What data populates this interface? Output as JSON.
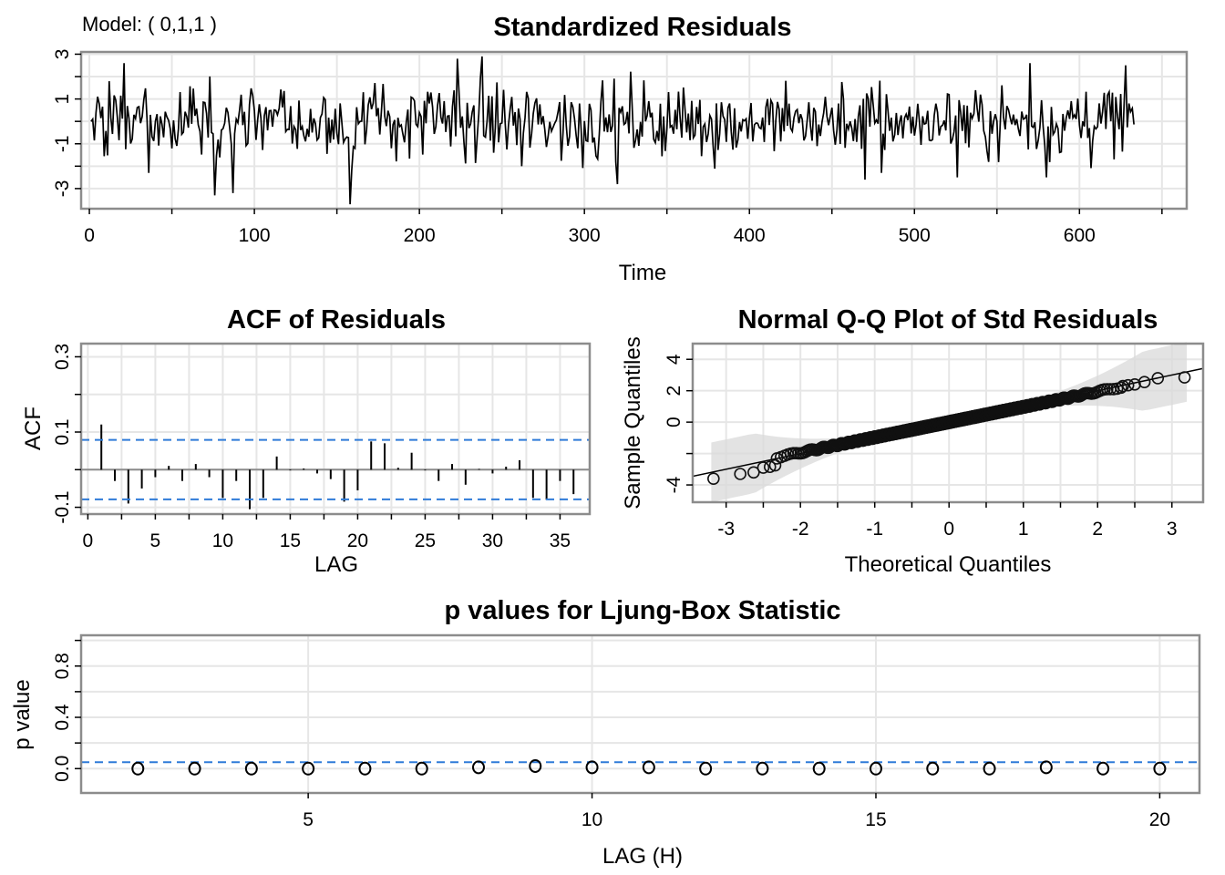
{
  "model_label": "Model: ( 0,1,1 )",
  "chart_data": [
    {
      "type": "line",
      "title": "Standardized Residuals",
      "xlabel": "Time",
      "ylabel": "",
      "xlim": [
        -5,
        665
      ],
      "ylim": [
        -3.9,
        3.1
      ],
      "xticks": [
        0,
        100,
        200,
        300,
        400,
        500,
        600
      ],
      "yticks": [
        3,
        1,
        -1,
        -3
      ],
      "n": 633,
      "seed": 17,
      "extremes": [
        {
          "t": 21,
          "y": 2.6
        },
        {
          "t": 76,
          "y": -3.3
        },
        {
          "t": 87,
          "y": -3.2
        },
        {
          "t": 158,
          "y": -3.7
        },
        {
          "t": 223,
          "y": 2.8
        },
        {
          "t": 238,
          "y": 2.9
        },
        {
          "t": 320,
          "y": -2.8
        },
        {
          "t": 570,
          "y": 2.6
        },
        {
          "t": 526,
          "y": -2.5
        },
        {
          "t": 628,
          "y": 2.5
        },
        {
          "t": 36,
          "y": -2.3
        },
        {
          "t": 262,
          "y": -2.0
        },
        {
          "t": 470,
          "y": -2.6
        },
        {
          "t": 480,
          "y": -2.3
        },
        {
          "t": 580,
          "y": -2.5
        }
      ],
      "grid": true,
      "color": "#000000"
    },
    {
      "type": "bar",
      "title": "ACF of Residuals",
      "xlabel": "LAG",
      "ylabel": "ACF",
      "xlim": [
        -0.5,
        37.2
      ],
      "ylim": [
        -0.118,
        0.335
      ],
      "xticks": [
        0,
        5,
        10,
        15,
        20,
        25,
        30,
        35
      ],
      "yticks": [
        0.3,
        0.1,
        -0.1
      ],
      "lags": [
        1,
        2,
        3,
        4,
        5,
        6,
        7,
        8,
        9,
        10,
        11,
        12,
        13,
        14,
        15,
        16,
        17,
        18,
        19,
        20,
        21,
        22,
        23,
        24,
        25,
        26,
        27,
        28,
        29,
        30,
        31,
        32,
        33,
        34,
        35,
        36
      ],
      "values": [
        0.12,
        -0.03,
        -0.09,
        -0.05,
        -0.02,
        0.01,
        -0.03,
        0.015,
        -0.02,
        -0.075,
        -0.03,
        -0.105,
        -0.075,
        0.035,
        -0.002,
        0.003,
        -0.01,
        -0.025,
        -0.085,
        -0.055,
        0.075,
        0.07,
        0.005,
        0.045,
        -0.002,
        -0.03,
        0.015,
        -0.04,
        0.002,
        -0.01,
        0.008,
        0.025,
        -0.075,
        -0.08,
        -0.03,
        -0.065
      ],
      "bounds": [
        0.079,
        -0.079
      ],
      "bound_color": "#2f7bd8",
      "grid": true
    },
    {
      "type": "scatter",
      "title": "Normal Q-Q Plot of Std Residuals",
      "xlabel": "Theoretical Quantiles",
      "ylabel": "Sample Quantiles",
      "xlim": [
        -3.45,
        3.42
      ],
      "ylim": [
        -5.1,
        5.0
      ],
      "xticks": [
        -3,
        -2,
        -1,
        0,
        1,
        2,
        3
      ],
      "yticks": [
        4,
        2,
        0,
        -4
      ],
      "n": 633,
      "line": {
        "intercept": 0.0,
        "slope": 1.0
      },
      "tail_points": [
        {
          "x": -3.17,
          "y": -3.6
        },
        {
          "x": -2.81,
          "y": -3.3
        },
        {
          "x": -2.63,
          "y": -3.2
        },
        {
          "x": -2.5,
          "y": -2.9
        },
        {
          "x": -2.41,
          "y": -2.85
        },
        {
          "x": -2.34,
          "y": -2.75
        },
        {
          "x": 2.34,
          "y": 2.3
        },
        {
          "x": 2.41,
          "y": 2.35
        },
        {
          "x": 2.5,
          "y": 2.4
        },
        {
          "x": 2.63,
          "y": 2.55
        },
        {
          "x": 2.81,
          "y": 2.8
        },
        {
          "x": 3.17,
          "y": 2.85
        }
      ],
      "band_color": "#d9d9d9",
      "grid": true
    },
    {
      "type": "scatter",
      "title": "p values for Ljung-Box Statistic",
      "xlabel": "LAG (H)",
      "ylabel": "p value",
      "xlim": [
        1.0,
        20.7
      ],
      "ylim": [
        -0.19,
        1.04
      ],
      "xticks": [
        5,
        10,
        15,
        20
      ],
      "yticks": [
        0.0,
        0.4,
        0.8
      ],
      "x": [
        2,
        3,
        4,
        5,
        6,
        7,
        8,
        9,
        10,
        11,
        12,
        13,
        14,
        15,
        16,
        17,
        18,
        19,
        20
      ],
      "y": [
        0.0,
        0.0,
        0.0,
        0.0,
        0.0,
        0.0,
        0.01,
        0.02,
        0.01,
        0.01,
        0.0,
        0.0,
        0.0,
        0.0,
        0.0,
        0.0,
        0.01,
        0.0,
        0.0
      ],
      "threshold": 0.05,
      "threshold_color": "#2f7bd8",
      "grid": true
    }
  ]
}
